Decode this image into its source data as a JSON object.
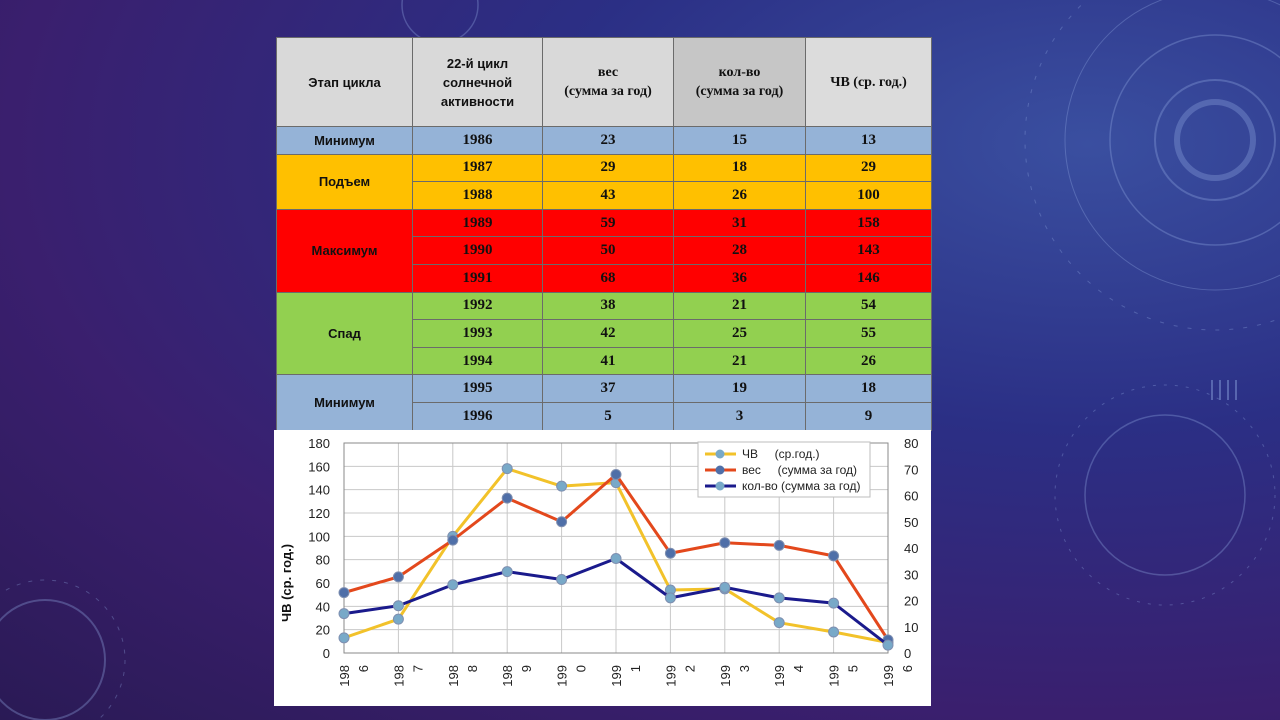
{
  "colors": {
    "minimum": "#95b3d7",
    "rise": "#ffc000",
    "maximum": "#ff0000",
    "decline": "#92d050",
    "header": "#d9d9d9",
    "series_chv": "#f2c22a",
    "series_ves": "#e3481c",
    "series_kol": "#1a1a8c",
    "marker": "#78a9c8"
  },
  "table": {
    "headers": {
      "stage": "Этап цикла",
      "cycle": "22-й цикл солнечной активности",
      "ves_line1": "вес",
      "ves_line2": "(сумма за год)",
      "kol_line1": "кол-во",
      "kol_line2": "(сумма за год)",
      "chv": "ЧВ (ср. год.)"
    },
    "stages": {
      "min1": "Минимум",
      "rise": "Подъем",
      "max": "Максимум",
      "decline": "Спад",
      "min2": "Минимум"
    },
    "rows": [
      {
        "year": "1986",
        "ves": "23",
        "kol": "15",
        "chv": "13"
      },
      {
        "year": "1987",
        "ves": "29",
        "kol": "18",
        "chv": "29"
      },
      {
        "year": "1988",
        "ves": "43",
        "kol": "26",
        "chv": "100"
      },
      {
        "year": "1989",
        "ves": "59",
        "kol": "31",
        "chv": "158"
      },
      {
        "year": "1990",
        "ves": "50",
        "kol": "28",
        "chv": "143"
      },
      {
        "year": "1991",
        "ves": "68",
        "kol": "36",
        "chv": "146"
      },
      {
        "year": "1992",
        "ves": "38",
        "kol": "21",
        "chv": "54"
      },
      {
        "year": "1993",
        "ves": "42",
        "kol": "25",
        "chv": "55"
      },
      {
        "year": "1994",
        "ves": "41",
        "kol": "21",
        "chv": "26"
      },
      {
        "year": "1995",
        "ves": "37",
        "kol": "19",
        "chv": "18"
      },
      {
        "year": "1996",
        "ves": "5",
        "kol": "3",
        "chv": "9"
      }
    ]
  },
  "chart_data": {
    "type": "line",
    "title": "",
    "xlabel": "",
    "ylabel": "ЧВ (ср. год.)",
    "x_tick_labels": [
      [
        "198",
        "6"
      ],
      [
        "198",
        "7"
      ],
      [
        "198",
        "8"
      ],
      [
        "198",
        "9"
      ],
      [
        "199",
        "0"
      ],
      [
        "199",
        "1"
      ],
      [
        "199",
        "2"
      ],
      [
        "199",
        "3"
      ],
      [
        "199",
        "4"
      ],
      [
        "199",
        "5"
      ],
      [
        "199",
        "6"
      ]
    ],
    "categories": [
      "1986",
      "1987",
      "1988",
      "1989",
      "1990",
      "1991",
      "1992",
      "1993",
      "1994",
      "1995",
      "1996"
    ],
    "ylim_left": [
      0,
      180
    ],
    "yticks_left": [
      "0",
      "20",
      "40",
      "60",
      "80",
      "100",
      "120",
      "140",
      "160",
      "180"
    ],
    "ylim_right": [
      0,
      80
    ],
    "yticks_right": [
      "0",
      "10",
      "20",
      "30",
      "40",
      "50",
      "60",
      "70",
      "80"
    ],
    "grid": true,
    "legend_position": "top-right",
    "series": [
      {
        "name": "ЧВ     (ср.год.)",
        "axis": "left",
        "values": [
          13,
          29,
          100,
          158,
          143,
          146,
          54,
          55,
          26,
          18,
          9
        ]
      },
      {
        "name": "вес     (сумма за год)",
        "axis": "right",
        "values": [
          23,
          29,
          43,
          59,
          50,
          68,
          38,
          42,
          41,
          37,
          5
        ]
      },
      {
        "name": "кол-во (сумма за год)",
        "axis": "right",
        "values": [
          15,
          18,
          26,
          31,
          28,
          36,
          21,
          25,
          21,
          19,
          3
        ]
      }
    ]
  }
}
